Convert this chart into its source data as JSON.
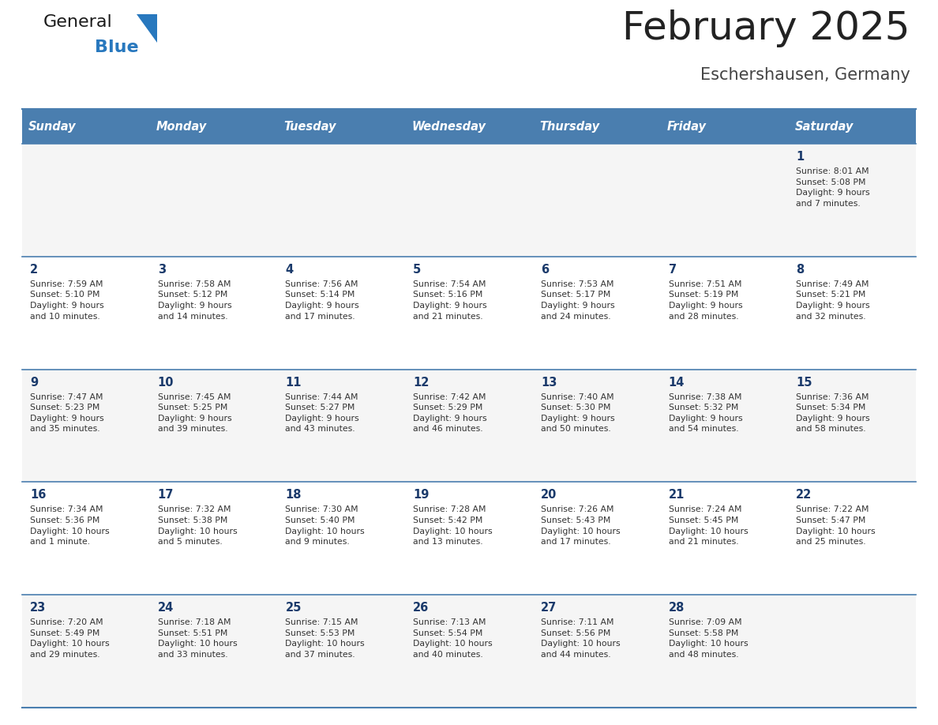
{
  "title": "February 2025",
  "subtitle": "Eschershausen, Germany",
  "days_of_week": [
    "Sunday",
    "Monday",
    "Tuesday",
    "Wednesday",
    "Thursday",
    "Friday",
    "Saturday"
  ],
  "header_bg": "#4A7EAF",
  "header_text": "#FFFFFF",
  "row_bg_light": "#F5F5F5",
  "row_bg_white": "#FFFFFF",
  "day_number_color": "#1a3a6b",
  "text_color": "#333333",
  "divider_color": "#4A7EAF",
  "logo_color_general": "#1a1a1a",
  "logo_color_blue": "#2878BE",
  "logo_triangle_color": "#2878BE",
  "calendar_data": [
    [
      null,
      null,
      null,
      null,
      null,
      null,
      {
        "day": "1",
        "sunrise": "Sunrise: 8:01 AM",
        "sunset": "Sunset: 5:08 PM",
        "daylight": "Daylight: 9 hours\nand 7 minutes."
      }
    ],
    [
      {
        "day": "2",
        "sunrise": "Sunrise: 7:59 AM",
        "sunset": "Sunset: 5:10 PM",
        "daylight": "Daylight: 9 hours\nand 10 minutes."
      },
      {
        "day": "3",
        "sunrise": "Sunrise: 7:58 AM",
        "sunset": "Sunset: 5:12 PM",
        "daylight": "Daylight: 9 hours\nand 14 minutes."
      },
      {
        "day": "4",
        "sunrise": "Sunrise: 7:56 AM",
        "sunset": "Sunset: 5:14 PM",
        "daylight": "Daylight: 9 hours\nand 17 minutes."
      },
      {
        "day": "5",
        "sunrise": "Sunrise: 7:54 AM",
        "sunset": "Sunset: 5:16 PM",
        "daylight": "Daylight: 9 hours\nand 21 minutes."
      },
      {
        "day": "6",
        "sunrise": "Sunrise: 7:53 AM",
        "sunset": "Sunset: 5:17 PM",
        "daylight": "Daylight: 9 hours\nand 24 minutes."
      },
      {
        "day": "7",
        "sunrise": "Sunrise: 7:51 AM",
        "sunset": "Sunset: 5:19 PM",
        "daylight": "Daylight: 9 hours\nand 28 minutes."
      },
      {
        "day": "8",
        "sunrise": "Sunrise: 7:49 AM",
        "sunset": "Sunset: 5:21 PM",
        "daylight": "Daylight: 9 hours\nand 32 minutes."
      }
    ],
    [
      {
        "day": "9",
        "sunrise": "Sunrise: 7:47 AM",
        "sunset": "Sunset: 5:23 PM",
        "daylight": "Daylight: 9 hours\nand 35 minutes."
      },
      {
        "day": "10",
        "sunrise": "Sunrise: 7:45 AM",
        "sunset": "Sunset: 5:25 PM",
        "daylight": "Daylight: 9 hours\nand 39 minutes."
      },
      {
        "day": "11",
        "sunrise": "Sunrise: 7:44 AM",
        "sunset": "Sunset: 5:27 PM",
        "daylight": "Daylight: 9 hours\nand 43 minutes."
      },
      {
        "day": "12",
        "sunrise": "Sunrise: 7:42 AM",
        "sunset": "Sunset: 5:29 PM",
        "daylight": "Daylight: 9 hours\nand 46 minutes."
      },
      {
        "day": "13",
        "sunrise": "Sunrise: 7:40 AM",
        "sunset": "Sunset: 5:30 PM",
        "daylight": "Daylight: 9 hours\nand 50 minutes."
      },
      {
        "day": "14",
        "sunrise": "Sunrise: 7:38 AM",
        "sunset": "Sunset: 5:32 PM",
        "daylight": "Daylight: 9 hours\nand 54 minutes."
      },
      {
        "day": "15",
        "sunrise": "Sunrise: 7:36 AM",
        "sunset": "Sunset: 5:34 PM",
        "daylight": "Daylight: 9 hours\nand 58 minutes."
      }
    ],
    [
      {
        "day": "16",
        "sunrise": "Sunrise: 7:34 AM",
        "sunset": "Sunset: 5:36 PM",
        "daylight": "Daylight: 10 hours\nand 1 minute."
      },
      {
        "day": "17",
        "sunrise": "Sunrise: 7:32 AM",
        "sunset": "Sunset: 5:38 PM",
        "daylight": "Daylight: 10 hours\nand 5 minutes."
      },
      {
        "day": "18",
        "sunrise": "Sunrise: 7:30 AM",
        "sunset": "Sunset: 5:40 PM",
        "daylight": "Daylight: 10 hours\nand 9 minutes."
      },
      {
        "day": "19",
        "sunrise": "Sunrise: 7:28 AM",
        "sunset": "Sunset: 5:42 PM",
        "daylight": "Daylight: 10 hours\nand 13 minutes."
      },
      {
        "day": "20",
        "sunrise": "Sunrise: 7:26 AM",
        "sunset": "Sunset: 5:43 PM",
        "daylight": "Daylight: 10 hours\nand 17 minutes."
      },
      {
        "day": "21",
        "sunrise": "Sunrise: 7:24 AM",
        "sunset": "Sunset: 5:45 PM",
        "daylight": "Daylight: 10 hours\nand 21 minutes."
      },
      {
        "day": "22",
        "sunrise": "Sunrise: 7:22 AM",
        "sunset": "Sunset: 5:47 PM",
        "daylight": "Daylight: 10 hours\nand 25 minutes."
      }
    ],
    [
      {
        "day": "23",
        "sunrise": "Sunrise: 7:20 AM",
        "sunset": "Sunset: 5:49 PM",
        "daylight": "Daylight: 10 hours\nand 29 minutes."
      },
      {
        "day": "24",
        "sunrise": "Sunrise: 7:18 AM",
        "sunset": "Sunset: 5:51 PM",
        "daylight": "Daylight: 10 hours\nand 33 minutes."
      },
      {
        "day": "25",
        "sunrise": "Sunrise: 7:15 AM",
        "sunset": "Sunset: 5:53 PM",
        "daylight": "Daylight: 10 hours\nand 37 minutes."
      },
      {
        "day": "26",
        "sunrise": "Sunrise: 7:13 AM",
        "sunset": "Sunset: 5:54 PM",
        "daylight": "Daylight: 10 hours\nand 40 minutes."
      },
      {
        "day": "27",
        "sunrise": "Sunrise: 7:11 AM",
        "sunset": "Sunset: 5:56 PM",
        "daylight": "Daylight: 10 hours\nand 44 minutes."
      },
      {
        "day": "28",
        "sunrise": "Sunrise: 7:09 AM",
        "sunset": "Sunset: 5:58 PM",
        "daylight": "Daylight: 10 hours\nand 48 minutes."
      },
      null
    ]
  ]
}
